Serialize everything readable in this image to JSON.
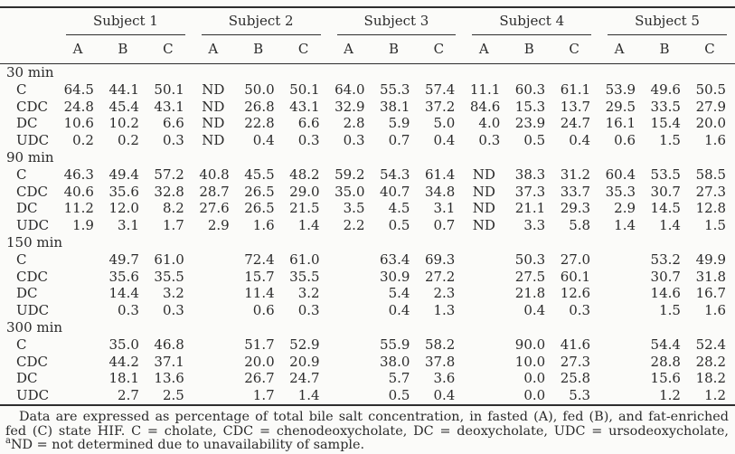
{
  "table": {
    "subjects": [
      "Subject 1",
      "Subject 2",
      "Subject 3",
      "Subject 4",
      "Subject 5"
    ],
    "sub_columns": [
      "A",
      "B",
      "C"
    ],
    "groups": [
      {
        "label": "30 min",
        "rows": [
          {
            "label": "C",
            "values": [
              "64.5",
              "44.1",
              "50.1",
              "ND",
              "50.0",
              "50.1",
              "64.0",
              "55.3",
              "57.4",
              "11.1",
              "60.3",
              "61.1",
              "53.9",
              "49.6",
              "50.5"
            ]
          },
          {
            "label": "CDC",
            "values": [
              "24.8",
              "45.4",
              "43.1",
              "ND",
              "26.8",
              "43.1",
              "32.9",
              "38.1",
              "37.2",
              "84.6",
              "15.3",
              "13.7",
              "29.5",
              "33.5",
              "27.9"
            ]
          },
          {
            "label": "DC",
            "values": [
              "10.6",
              "10.2",
              "6.6",
              "ND",
              "22.8",
              "6.6",
              "2.8",
              "5.9",
              "5.0",
              "4.0",
              "23.9",
              "24.7",
              "16.1",
              "15.4",
              "20.0"
            ]
          },
          {
            "label": "UDC",
            "values": [
              "0.2",
              "0.2",
              "0.3",
              "ND",
              "0.4",
              "0.3",
              "0.3",
              "0.7",
              "0.4",
              "0.3",
              "0.5",
              "0.4",
              "0.6",
              "1.5",
              "1.6"
            ]
          }
        ]
      },
      {
        "label": "90 min",
        "rows": [
          {
            "label": "C",
            "values": [
              "46.3",
              "49.4",
              "57.2",
              "40.8",
              "45.5",
              "48.2",
              "59.2",
              "54.3",
              "61.4",
              "ND",
              "38.3",
              "31.2",
              "60.4",
              "53.5",
              "58.5"
            ]
          },
          {
            "label": "CDC",
            "values": [
              "40.6",
              "35.6",
              "32.8",
              "28.7",
              "26.5",
              "29.0",
              "35.0",
              "40.7",
              "34.8",
              "ND",
              "37.3",
              "33.7",
              "35.3",
              "30.7",
              "27.3"
            ]
          },
          {
            "label": "DC",
            "values": [
              "11.2",
              "12.0",
              "8.2",
              "27.6",
              "26.5",
              "21.5",
              "3.5",
              "4.5",
              "3.1",
              "ND",
              "21.1",
              "29.3",
              "2.9",
              "14.5",
              "12.8"
            ]
          },
          {
            "label": "UDC",
            "values": [
              "1.9",
              "3.1",
              "1.7",
              "2.9",
              "1.6",
              "1.4",
              "2.2",
              "0.5",
              "0.7",
              "ND",
              "3.3",
              "5.8",
              "1.4",
              "1.4",
              "1.5"
            ]
          }
        ]
      },
      {
        "label": "150 min",
        "rows": [
          {
            "label": "C",
            "values": [
              "",
              "49.7",
              "61.0",
              "",
              "72.4",
              "61.0",
              "",
              "63.4",
              "69.3",
              "",
              "50.3",
              "27.0",
              "",
              "53.2",
              "49.9"
            ]
          },
          {
            "label": "CDC",
            "values": [
              "",
              "35.6",
              "35.5",
              "",
              "15.7",
              "35.5",
              "",
              "30.9",
              "27.2",
              "",
              "27.5",
              "60.1",
              "",
              "30.7",
              "31.8"
            ]
          },
          {
            "label": "DC",
            "values": [
              "",
              "14.4",
              "3.2",
              "",
              "11.4",
              "3.2",
              "",
              "5.4",
              "2.3",
              "",
              "21.8",
              "12.6",
              "",
              "14.6",
              "16.7"
            ]
          },
          {
            "label": "UDC",
            "values": [
              "",
              "0.3",
              "0.3",
              "",
              "0.6",
              "0.3",
              "",
              "0.4",
              "1.3",
              "",
              "0.4",
              "0.3",
              "",
              "1.5",
              "1.6"
            ]
          }
        ]
      },
      {
        "label": "300 min",
        "rows": [
          {
            "label": "C",
            "values": [
              "",
              "35.0",
              "46.8",
              "",
              "51.7",
              "52.9",
              "",
              "55.9",
              "58.2",
              "",
              "90.0",
              "41.6",
              "",
              "54.4",
              "52.4"
            ]
          },
          {
            "label": "CDC",
            "values": [
              "",
              "44.2",
              "37.1",
              "",
              "20.0",
              "20.9",
              "",
              "38.0",
              "37.8",
              "",
              "10.0",
              "27.3",
              "",
              "28.8",
              "28.2"
            ]
          },
          {
            "label": "DC",
            "values": [
              "",
              "18.1",
              "13.6",
              "",
              "26.7",
              "24.7",
              "",
              "5.7",
              "3.6",
              "",
              "0.0",
              "25.8",
              "",
              "15.6",
              "18.2"
            ]
          },
          {
            "label": "UDC",
            "values": [
              "",
              "2.7",
              "2.5",
              "",
              "1.7",
              "1.4",
              "",
              "0.5",
              "0.4",
              "",
              "0.0",
              "5.3",
              "",
              "1.2",
              "1.2"
            ]
          }
        ]
      }
    ]
  },
  "footnote": {
    "part1": "Data are expressed as percentage of total bile salt concentration, in fasted (A), fed (B), and fat-enriched fed (C) state HIF. C = cholate, CDC = chenodeoxycholate, DC = deoxycholate, UDC = ursodeoxycholate, ",
    "sup": "a",
    "part2": "ND = not determined due to unavailability of sample."
  }
}
